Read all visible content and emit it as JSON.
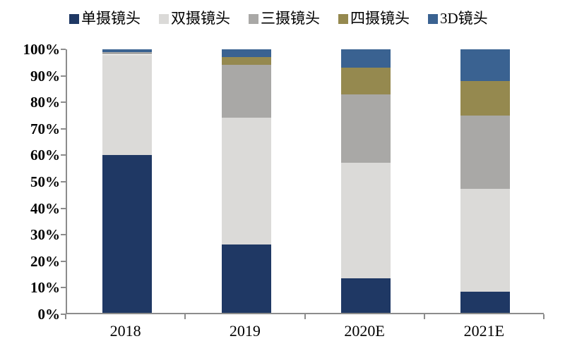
{
  "chart_data": {
    "type": "bar",
    "stacked": true,
    "title": "",
    "xlabel": "",
    "ylabel": "",
    "categories": [
      "2018",
      "2019",
      "2020E",
      "2021E"
    ],
    "series": [
      {
        "name": "单摄镜头",
        "color": "#1F3864",
        "values": [
          60,
          26,
          13,
          8
        ]
      },
      {
        "name": "双摄镜头",
        "color": "#DBDAD8",
        "values": [
          38,
          48,
          44,
          39
        ]
      },
      {
        "name": "三摄镜头",
        "color": "#A9A8A6",
        "values": [
          1,
          20,
          26,
          28
        ]
      },
      {
        "name": "四摄镜头",
        "color": "#95894F",
        "values": [
          0,
          3,
          10,
          13
        ]
      },
      {
        "name": "3D镜头",
        "color": "#3A6291",
        "values": [
          1,
          3,
          7,
          12
        ]
      }
    ],
    "ylim": [
      0,
      100
    ],
    "ytick_step": 10,
    "y_tick_labels": [
      "0%",
      "10%",
      "20%",
      "30%",
      "40%",
      "50%",
      "60%",
      "70%",
      "80%",
      "90%",
      "100%"
    ],
    "grid": false,
    "legend_position": "top",
    "axis_color": "#8C8C8C",
    "text_color": "#000000"
  }
}
